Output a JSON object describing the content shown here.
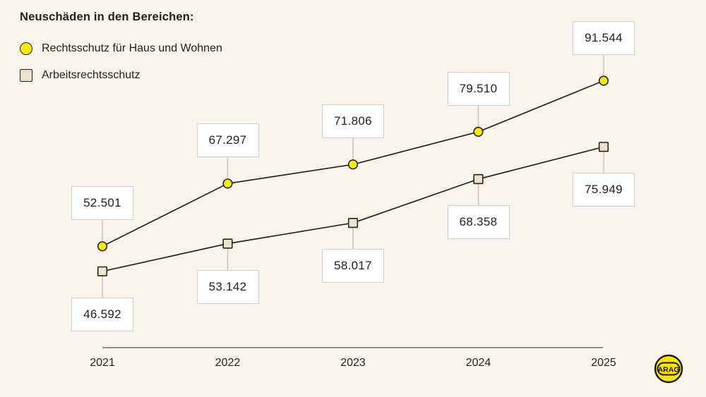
{
  "title": "Neuschäden in den Bereichen:",
  "legend": {
    "items": [
      {
        "label": "Rechtsschutz für Haus und Wohnen",
        "marker": "circle"
      },
      {
        "label": "Arbeitsrechtsschutz",
        "marker": "square"
      }
    ]
  },
  "chart_data": {
    "type": "line",
    "title": "Neuschäden in den Bereichen:",
    "categories": [
      "2021",
      "2022",
      "2023",
      "2024",
      "2025"
    ],
    "series": [
      {
        "name": "Rechtsschutz für Haus und Wohnen",
        "marker": "circle",
        "marker_color": "#f6e71c",
        "values": [
          52501,
          67297,
          71806,
          79510,
          91544
        ],
        "value_labels": [
          "52.501",
          "67.297",
          "71.806",
          "79.510",
          "91.544"
        ],
        "label_position": "above"
      },
      {
        "name": "Arbeitsrechtsschutz",
        "marker": "square",
        "marker_color": "#eae2c9",
        "values": [
          46592,
          53142,
          58017,
          68358,
          75949
        ],
        "value_labels": [
          "46.592",
          "53.142",
          "58.017",
          "68.358",
          "75.949"
        ],
        "label_position": "below"
      }
    ],
    "xlabel": "",
    "ylabel": "",
    "ylim": [
      40000,
      100000
    ],
    "grid": false,
    "legend_position": "top-left",
    "line_color": "#29231d"
  },
  "logo": {
    "text": "ARAG",
    "color": "#f6e112"
  },
  "colors": {
    "background": "#f8f3ec",
    "accent_yellow": "#f6e71c",
    "accent_beige": "#eae2c9",
    "line": "#29231d",
    "box_border": "#d3cfc8",
    "connector": "#c8c4bc",
    "axis": "#6f6b64",
    "text": "#26211c"
  }
}
